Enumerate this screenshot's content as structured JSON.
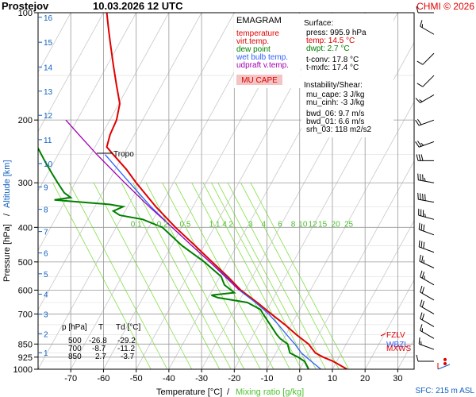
{
  "header": {
    "station": "Prostejov",
    "datetime": "10.03.2026 12 UTC",
    "copyright": "CHMI © 2026"
  },
  "colors": {
    "temperature": "#e00000",
    "dewpoint": "#008000",
    "wetbulb": "#3060ff",
    "parcel": "#a000b0",
    "mixing": "#80e040",
    "grid": "#999999"
  },
  "legend": {
    "title": "EMAGRAM",
    "items": [
      {
        "label": "temperature",
        "color": "#e00000"
      },
      {
        "label": "virt.temp.",
        "color": "#e00000"
      },
      {
        "label": "dew point",
        "color": "#008000"
      },
      {
        "label": "wet bulb temp.",
        "color": "#3060ff"
      },
      {
        "label": "udpraft v.temp.",
        "color": "#a000b0"
      }
    ],
    "badge": "MU CAPE"
  },
  "surface": {
    "title": "Surface:",
    "lines": [
      {
        "text": "press: 995.9 hPa",
        "color": "#000000"
      },
      {
        "text": "temp: 14.5 °C",
        "color": "#e00000"
      },
      {
        "text": "dwpt: 2.7 °C",
        "color": "#008000"
      }
    ],
    "conv": [
      "t-conv: 17.8 °C",
      "t-mxfc: 17.4 °C"
    ]
  },
  "instability": {
    "title": "Instability/Shear:",
    "lines": [
      "mu_cape: 3 J/kg",
      "mu_cinh: -3 J/kg",
      "bwd_06: 9.7 m/s",
      "bwd_01: 6.6 m/s",
      "srh_03: 118 m2/s2"
    ]
  },
  "table": {
    "headers": [
      "p [hPa]",
      "T",
      "Td [°C]"
    ],
    "rows": [
      [
        "500",
        "-26.8",
        "-29.2"
      ],
      [
        "700",
        "-8.7",
        "-11.2"
      ],
      [
        "850",
        "2.7",
        "-3.7"
      ]
    ]
  },
  "annotations": {
    "tropo": "Tropo",
    "fzlv": "FZLV",
    "wbzl": "WBZL",
    "mxws": "MXWS",
    "sfc": "SFC: 215 m ASL"
  },
  "chart_data": {
    "type": "line",
    "xlabel": "Temperature [°C]",
    "xlabel_sep": "/",
    "xlabel2": "Mixing ratio [g/kg]",
    "ylabel": "Pressure [hPa]",
    "ylabel_sep": "/",
    "ylabel2": "Altitude [km]",
    "xlim": [
      -80,
      35
    ],
    "ylim": [
      100,
      1000
    ],
    "y_scale": "log",
    "x_ticks": [
      -70,
      -60,
      -50,
      -40,
      -30,
      -20,
      -10,
      0,
      10,
      20,
      30
    ],
    "y_ticks": [
      100,
      200,
      300,
      400,
      500,
      600,
      700,
      850,
      925,
      1000
    ],
    "altitude_ticks": [
      {
        "km": "1",
        "p": 899
      },
      {
        "km": "2",
        "p": 795
      },
      {
        "km": "3",
        "p": 701
      },
      {
        "km": "4",
        "p": 616
      },
      {
        "km": "5",
        "p": 540
      },
      {
        "km": "6",
        "p": 472
      },
      {
        "km": "7",
        "p": 411
      },
      {
        "km": "8",
        "p": 356
      },
      {
        "km": "9",
        "p": 308
      },
      {
        "km": "10",
        "p": 265
      },
      {
        "km": "11",
        "p": 227
      },
      {
        "km": "12",
        "p": 194
      },
      {
        "km": "13",
        "p": 166
      },
      {
        "km": "14",
        "p": 142
      },
      {
        "km": "15",
        "p": 121
      },
      {
        "km": "16",
        "p": 103
      }
    ],
    "mixing_ratio_labels": [
      "0.1",
      "0.2",
      "0.5",
      "1",
      "1.4",
      "2",
      "3",
      "4",
      "6",
      "8",
      "10",
      "12",
      "15",
      "20",
      "25"
    ],
    "mixing_ratio_label_p": 390,
    "mixing_ratio_label_t": [
      -50,
      -42,
      -35,
      -27,
      -24,
      -21,
      -15,
      -11,
      -6,
      -2,
      1,
      4,
      7,
      11,
      15
    ],
    "mixing_ratio_lines_t1000": [
      -45.5,
      -40.5,
      -33,
      -24.5,
      -21,
      -17,
      -12,
      -8,
      -3,
      0.5,
      3,
      5,
      8,
      12,
      15
    ],
    "mixing_ratio_slope": 30,
    "series": [
      {
        "name": "temperature",
        "color": "#e00000",
        "points": [
          [
            1000,
            14.5
          ],
          [
            950,
            10.2
          ],
          [
            925,
            7.2
          ],
          [
            900,
            4.8
          ],
          [
            850,
            2.7
          ],
          [
            800,
            -1
          ],
          [
            750,
            -4.5
          ],
          [
            700,
            -8.7
          ],
          [
            650,
            -13
          ],
          [
            600,
            -18
          ],
          [
            550,
            -22
          ],
          [
            500,
            -26.8
          ],
          [
            450,
            -32
          ],
          [
            400,
            -38
          ],
          [
            350,
            -44
          ],
          [
            300,
            -50
          ],
          [
            275,
            -53
          ],
          [
            250,
            -57
          ],
          [
            238,
            -59
          ],
          [
            220,
            -58
          ],
          [
            200,
            -56
          ],
          [
            180,
            -55
          ],
          [
            160,
            -56
          ],
          [
            140,
            -57
          ],
          [
            120,
            -58
          ],
          [
            110,
            -58.5
          ],
          [
            100,
            -59
          ]
        ]
      },
      {
        "name": "dew point",
        "color": "#008000",
        "points": [
          [
            1000,
            2.7
          ],
          [
            950,
            1.5
          ],
          [
            925,
            -0.5
          ],
          [
            900,
            -3
          ],
          [
            850,
            -3.7
          ],
          [
            820,
            -6
          ],
          [
            800,
            -7
          ],
          [
            750,
            -9
          ],
          [
            700,
            -11.2
          ],
          [
            680,
            -12
          ],
          [
            650,
            -16
          ],
          [
            630,
            -25
          ],
          [
            620,
            -27
          ],
          [
            610,
            -20
          ],
          [
            580,
            -23
          ],
          [
            550,
            -24
          ],
          [
            500,
            -29.2
          ],
          [
            450,
            -36
          ],
          [
            400,
            -42
          ],
          [
            380,
            -48
          ],
          [
            370,
            -55
          ],
          [
            360,
            -57
          ],
          [
            350,
            -54
          ],
          [
            345,
            -58
          ],
          [
            338,
            -70
          ],
          [
            335,
            -75
          ],
          [
            330,
            -70
          ],
          [
            320,
            -72
          ],
          [
            300,
            -74
          ],
          [
            280,
            -76
          ],
          [
            260,
            -78
          ],
          [
            240,
            -80
          ]
        ]
      },
      {
        "name": "wet bulb temp.",
        "color": "#3060ff",
        "points": [
          [
            1000,
            6.5
          ],
          [
            950,
            3.5
          ],
          [
            900,
            0.5
          ],
          [
            850,
            -1.5
          ],
          [
            800,
            -4
          ],
          [
            750,
            -6.5
          ],
          [
            700,
            -9.5
          ],
          [
            650,
            -13.5
          ],
          [
            600,
            -18.5
          ],
          [
            550,
            -22.5
          ],
          [
            500,
            -27.5
          ],
          [
            450,
            -33
          ],
          [
            400,
            -39
          ],
          [
            350,
            -45.5
          ],
          [
            300,
            -52
          ],
          [
            250,
            -59.5
          ]
        ]
      },
      {
        "name": "udpraft v.temp.",
        "color": "#a000b0",
        "points": [
          [
            600,
            -18.5
          ],
          [
            550,
            -22.8
          ],
          [
            500,
            -27.5
          ],
          [
            450,
            -33
          ],
          [
            400,
            -39
          ],
          [
            350,
            -46
          ],
          [
            300,
            -53.5
          ],
          [
            250,
            -62
          ],
          [
            220,
            -67.5
          ],
          [
            200,
            -71.5
          ]
        ]
      }
    ],
    "winds": [
      {
        "p": 100,
        "dir": 270,
        "spd": 10
      },
      {
        "p": 115,
        "dir": 300,
        "spd": 15
      },
      {
        "p": 130,
        "dir": 225,
        "spd": 10
      },
      {
        "p": 150,
        "dir": 225,
        "spd": 10
      },
      {
        "p": 170,
        "dir": 240,
        "spd": 15
      },
      {
        "p": 200,
        "dir": 250,
        "spd": 20
      },
      {
        "p": 230,
        "dir": 250,
        "spd": 25
      },
      {
        "p": 260,
        "dir": 270,
        "spd": 30
      },
      {
        "p": 300,
        "dir": 280,
        "spd": 35
      },
      {
        "p": 340,
        "dir": 280,
        "spd": 40
      },
      {
        "p": 380,
        "dir": 285,
        "spd": 35
      },
      {
        "p": 420,
        "dir": 290,
        "spd": 30
      },
      {
        "p": 470,
        "dir": 290,
        "spd": 30
      },
      {
        "p": 520,
        "dir": 295,
        "spd": 25
      },
      {
        "p": 580,
        "dir": 300,
        "spd": 25
      },
      {
        "p": 640,
        "dir": 300,
        "spd": 20
      },
      {
        "p": 700,
        "dir": 300,
        "spd": 20
      },
      {
        "p": 760,
        "dir": 300,
        "spd": 20
      },
      {
        "p": 820,
        "dir": 300,
        "spd": 15
      },
      {
        "p": 880,
        "dir": 290,
        "spd": 15
      },
      {
        "p": 950,
        "dir": 270,
        "spd": 10
      }
    ]
  }
}
